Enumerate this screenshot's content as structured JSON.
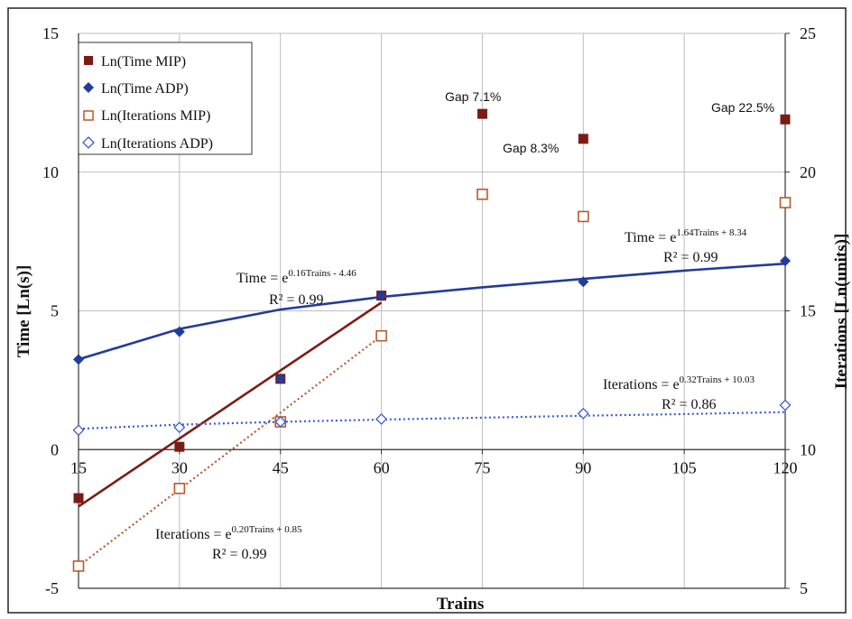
{
  "chart_data": {
    "type": "scatter",
    "title": "",
    "xlabel": "Trains",
    "ylabel": "Time [Ln(s)]",
    "y2label": "Iterations [Ln(units)]",
    "xlim": [
      15,
      120
    ],
    "ylim": [
      -5,
      15
    ],
    "y2lim": [
      5,
      25
    ],
    "x_ticks": [
      "15",
      "30",
      "45",
      "60",
      "75",
      "90",
      "105",
      "120"
    ],
    "y_ticks": [
      "-5",
      "0",
      "5",
      "10",
      "15"
    ],
    "y2_ticks": [
      "5",
      "10",
      "15",
      "20",
      "25"
    ],
    "colors": {
      "mip": "#7b1c14",
      "adp": "#233b99",
      "iter_mip": "#b85a2a",
      "iter_adp": "#3a5bd0"
    },
    "legend_position": "top-left",
    "series": [
      {
        "name": "Ln(Time MIP)",
        "axis": "left",
        "marker": "filled-square",
        "x": [
          15,
          30,
          45,
          60,
          75,
          90,
          120
        ],
        "y": [
          -1.75,
          0.1,
          2.55,
          5.55,
          12.1,
          11.2,
          11.9
        ]
      },
      {
        "name": "Ln(Time ADP)",
        "axis": "left",
        "marker": "filled-diamond",
        "x": [
          15,
          30,
          45,
          60,
          90,
          120
        ],
        "y": [
          3.25,
          4.25,
          2.55,
          5.55,
          6.05,
          6.8
        ]
      },
      {
        "name": "Ln(Iterations MIP)",
        "axis": "right",
        "marker": "hollow-square",
        "x": [
          15,
          30,
          45,
          60,
          75,
          90,
          120
        ],
        "y": [
          5.8,
          8.6,
          11.0,
          14.1,
          19.2,
          18.4,
          18.9
        ]
      },
      {
        "name": "Ln(Iterations ADP)",
        "axis": "right",
        "marker": "hollow-diamond",
        "x": [
          15,
          30,
          45,
          60,
          90,
          120
        ],
        "y": [
          10.7,
          10.8,
          11.0,
          11.1,
          11.3,
          11.6
        ]
      }
    ],
    "trendlines": [
      {
        "name": "time-mip-fit",
        "axis": "left",
        "style": "solid",
        "color": "mip",
        "x": [
          15,
          60
        ],
        "y": [
          -2.05,
          5.3
        ]
      },
      {
        "name": "time-adp-fit",
        "axis": "left",
        "style": "solid",
        "color": "adp",
        "x": [
          15,
          30,
          45,
          60,
          75,
          90,
          105,
          120
        ],
        "y": [
          3.25,
          4.35,
          5.05,
          5.5,
          5.85,
          6.15,
          6.45,
          6.7
        ]
      },
      {
        "name": "iter-mip-fit",
        "axis": "right",
        "style": "dotted",
        "color": "iter_mip",
        "x": [
          15,
          60
        ],
        "y": [
          5.8,
          14.1
        ]
      },
      {
        "name": "iter-adp-fit",
        "axis": "right",
        "style": "dotted",
        "color": "iter_adp",
        "x": [
          15,
          30,
          45,
          60,
          75,
          90,
          105,
          120
        ],
        "y": [
          10.75,
          10.9,
          11.0,
          11.08,
          11.15,
          11.22,
          11.28,
          11.35
        ]
      }
    ],
    "gap_labels": [
      {
        "text": "Gap 7.1%",
        "x": 75,
        "y": 12.1
      },
      {
        "text": "Gap 8.3%",
        "x": 90,
        "y": 11.2
      },
      {
        "text": "Gap 22.5%",
        "x": 120,
        "y": 11.9
      }
    ],
    "equations": [
      {
        "name": "eq-time-mip",
        "base": "Time = e",
        "exponent": "0.16Trains - 4.46",
        "r2": "R² = 0.99"
      },
      {
        "name": "eq-time-adp",
        "base": "Time = e",
        "exponent": "1.64Trains + 8.34",
        "r2": "R² = 0.99"
      },
      {
        "name": "eq-iter-adp",
        "base": "Iterations = e",
        "exponent": "0.32Trains + 10.03",
        "r2": "R² = 0.86"
      },
      {
        "name": "eq-iter-mip",
        "base": "Iterations = e",
        "exponent": "0.20Trains + 0.85",
        "r2": "R² = 0.99"
      }
    ]
  }
}
